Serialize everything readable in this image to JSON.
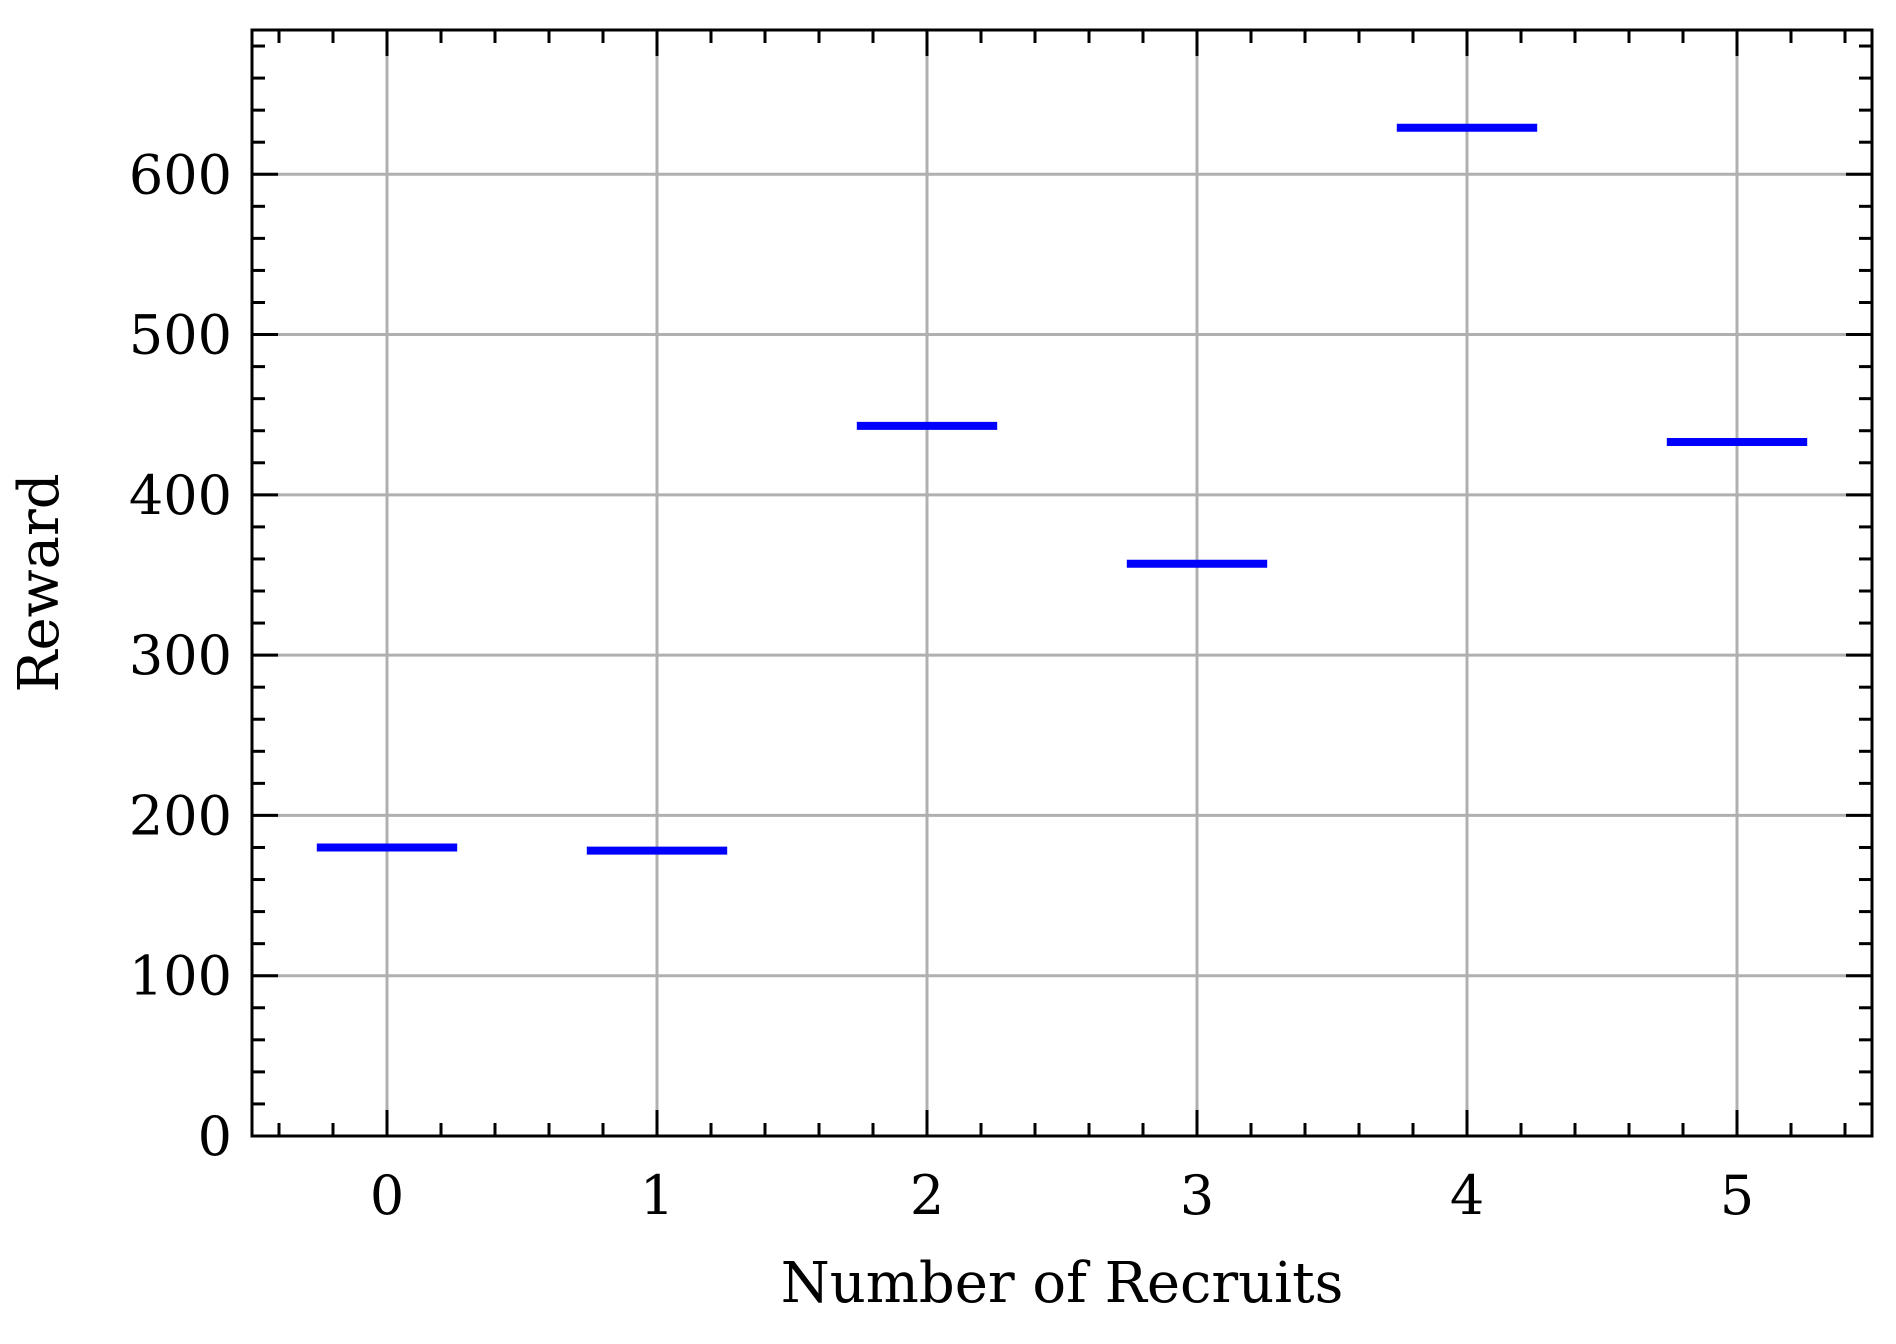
{
  "chart_data": {
    "type": "scatter",
    "marker": "hline",
    "xlabel": "Number of Recruits",
    "ylabel": "Reward",
    "x": [
      0,
      1,
      2,
      3,
      4,
      5
    ],
    "values": [
      180,
      178,
      443,
      357,
      629,
      433
    ],
    "xticks": [
      "0",
      "1",
      "2",
      "3",
      "4",
      "5"
    ],
    "yticks": [
      "0",
      "100",
      "200",
      "300",
      "400",
      "500",
      "600"
    ],
    "xlim": [
      -0.5,
      5.5
    ],
    "ylim": [
      0,
      690
    ],
    "grid": true,
    "series_color": "#0000ff",
    "grid_color": "#b0b0b0"
  }
}
